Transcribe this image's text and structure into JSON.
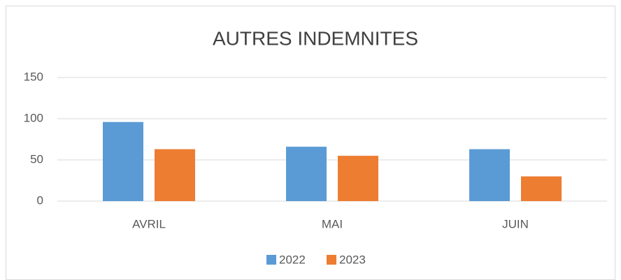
{
  "chart_data": {
    "type": "bar",
    "title": "AUTRES INDEMNITES",
    "categories": [
      "AVRIL",
      "MAI",
      "JUIN"
    ],
    "series": [
      {
        "name": "2022",
        "color": "#5b9bd5",
        "values": [
          96,
          66,
          63
        ]
      },
      {
        "name": "2023",
        "color": "#ed7d31",
        "values": [
          63,
          55,
          30
        ]
      }
    ],
    "ylim": [
      0,
      150
    ],
    "yticks": [
      0,
      50,
      100,
      150
    ],
    "grid": true,
    "legend": "bottom"
  }
}
